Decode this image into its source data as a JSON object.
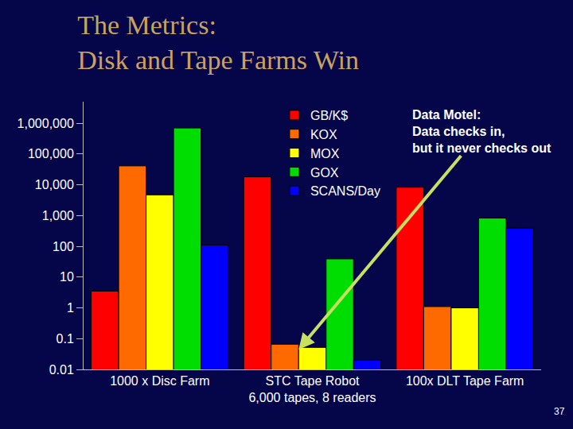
{
  "chart_data": {
    "type": "bar",
    "title": "The Metrics:\nDisk and Tape Farms Win",
    "categories": [
      "1000 x Disc Farm",
      "STC Tape Robot\n6,000 tapes, 8 readers",
      "100x DLT Tape Farm"
    ],
    "series": [
      {
        "name": "GB/K$",
        "color": "#ff0000",
        "values": [
          3.5,
          18000,
          8300
        ]
      },
      {
        "name": "KOX",
        "color": "#ff6a00",
        "values": [
          41000,
          0.066,
          1.1
        ]
      },
      {
        "name": "MOX",
        "color": "#ffff00",
        "values": [
          4700,
          0.052,
          1
        ]
      },
      {
        "name": "GOX",
        "color": "#00dd00",
        "values": [
          700000,
          39,
          830
        ]
      },
      {
        "name": "SCANS/Day",
        "color": "#0000ff",
        "values": [
          110,
          0.02,
          390
        ]
      }
    ],
    "ylim": [
      0.01,
      5000000
    ],
    "yticks": [
      0.01,
      0.1,
      1,
      10,
      100,
      {
        "value": 1000,
        "label": "1,000"
      },
      {
        "value": 10000,
        "label": "10,000"
      },
      {
        "value": 100000,
        "label": "100,000"
      },
      {
        "value": 1000000,
        "label": "1,000,000"
      }
    ],
    "log": "y",
    "grid": false,
    "legend": "top",
    "annotations": [
      {
        "text": "Data Motel:\nData checks in,\nbut it never checks out"
      },
      {
        "text": "37"
      }
    ]
  }
}
